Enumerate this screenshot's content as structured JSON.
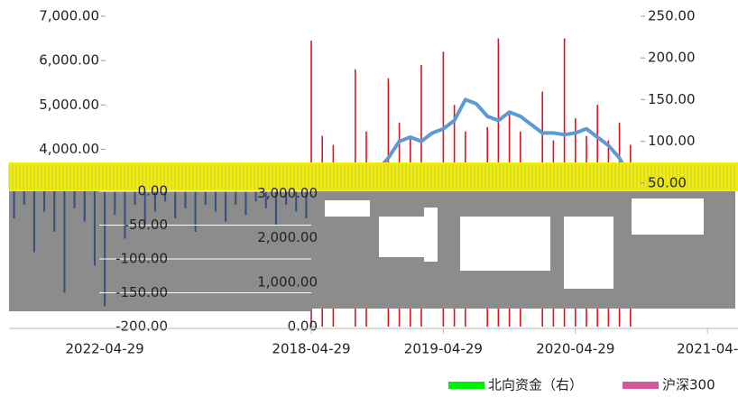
{
  "chart_data": [
    {
      "type": "combo",
      "categories": [
        "2018-04-29",
        null,
        null,
        null,
        null,
        null,
        null,
        null,
        null,
        null,
        null,
        null,
        "2019-04-29",
        null,
        null,
        null,
        null,
        null,
        null,
        null,
        null,
        null,
        null,
        null,
        "2020-04-29",
        null,
        null,
        null,
        null,
        null,
        null,
        null,
        null,
        null,
        null,
        null,
        "2021-04-"
      ],
      "ylim": [
        0,
        7000
      ],
      "yticks": [
        {
          "value": 0,
          "label": "0.00"
        },
        {
          "value": 1000,
          "label": "1,000.00"
        },
        {
          "value": 2000,
          "label": "2,000.00"
        },
        {
          "value": 3000,
          "label": "3,000.00"
        },
        {
          "value": 4000,
          "label": "4,000.00"
        },
        {
          "value": 5000,
          "label": "5,000.00"
        },
        {
          "value": 6000,
          "label": "6,000.00"
        },
        {
          "value": 7000,
          "label": "7,000.00"
        }
      ],
      "y2lim": [
        0,
        250
      ],
      "y2ticks": [
        {
          "value": 50,
          "label": "50.00"
        },
        {
          "value": 100,
          "label": "100.00"
        },
        {
          "value": 150,
          "label": "150.00"
        },
        {
          "value": 200,
          "label": "200.00"
        },
        {
          "value": 250,
          "label": "250.00"
        }
      ],
      "series": [
        {
          "type": "bar",
          "color": "#e0141e",
          "values": [
            6450,
            4300,
            4100,
            null,
            5800,
            4400,
            null,
            5600,
            4600,
            4300,
            5900,
            null,
            6200,
            5000,
            4400,
            null,
            4500,
            6500,
            4800,
            4400,
            null,
            5300,
            4200,
            6500,
            4700,
            4300,
            5000,
            4200,
            4600,
            4100,
            null,
            null,
            null,
            null,
            null,
            null,
            null
          ]
        },
        {
          "type": "line",
          "axis": "y2",
          "color": "#5b9bd5",
          "values": [
            50,
            52,
            55,
            60,
            55,
            58,
            65,
            80,
            100,
            105,
            100,
            110,
            115,
            125,
            150,
            145,
            130,
            125,
            135,
            130,
            120,
            110,
            110,
            108,
            110,
            115,
            105,
            95,
            80,
            55,
            null,
            null,
            null,
            null,
            null,
            null,
            null
          ]
        }
      ],
      "legend": [
        {
          "name": "北向资金（右）",
          "color": "#00ee00"
        },
        {
          "name": "沪深300",
          "color": "#d1589b"
        }
      ]
    },
    {
      "type": "bar",
      "categories": [
        null,
        null,
        null,
        null,
        null,
        null,
        null,
        null,
        null,
        "2022-04-29",
        null,
        null,
        null,
        null,
        null,
        null,
        null,
        null,
        null,
        null,
        null,
        null,
        null,
        null,
        null,
        null,
        null,
        null,
        null,
        null
      ],
      "ylim": [
        -200,
        0
      ],
      "yticks": [
        {
          "value": 0,
          "label": "0.00"
        },
        {
          "value": -50,
          "label": "-50.00"
        },
        {
          "value": -100,
          "label": "-100.00"
        },
        {
          "value": -150,
          "label": "-150.00"
        },
        {
          "value": -200,
          "label": "-200.00"
        }
      ],
      "color": "#34507f",
      "values": [
        -40,
        -20,
        -90,
        -30,
        -60,
        -150,
        -25,
        -45,
        -110,
        -170,
        -35,
        -70,
        -20,
        -50,
        -30,
        -15,
        -40,
        -25,
        -60,
        -20,
        -30,
        -45,
        -20,
        -35,
        -15,
        -25,
        -50,
        -20,
        -30,
        -40
      ]
    }
  ]
}
